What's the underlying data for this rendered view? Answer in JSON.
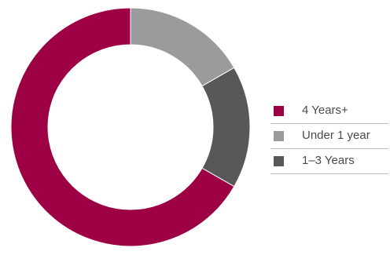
{
  "chart_data": {
    "type": "pie",
    "donut": true,
    "title": "",
    "legend_position": "right",
    "series": [
      {
        "name": "4 Years+",
        "value": 66.7,
        "color": "#9d0045"
      },
      {
        "name": "Under 1 year",
        "value": 16.7,
        "color": "#9b9b9d"
      },
      {
        "name": "1–3 Years",
        "value": 16.6,
        "color": "#58585a"
      }
    ],
    "slice_order": [
      "Under 1 year",
      "1–3 Years",
      "4 Years+"
    ],
    "start_angle": "top",
    "direction": "clockwise"
  },
  "legend": {
    "items": [
      {
        "label": "4 Years+",
        "color": "#9d0045"
      },
      {
        "label": "Under 1 year",
        "color": "#9b9b9d"
      },
      {
        "label": "1–3 Years",
        "color": "#58585a"
      }
    ]
  }
}
